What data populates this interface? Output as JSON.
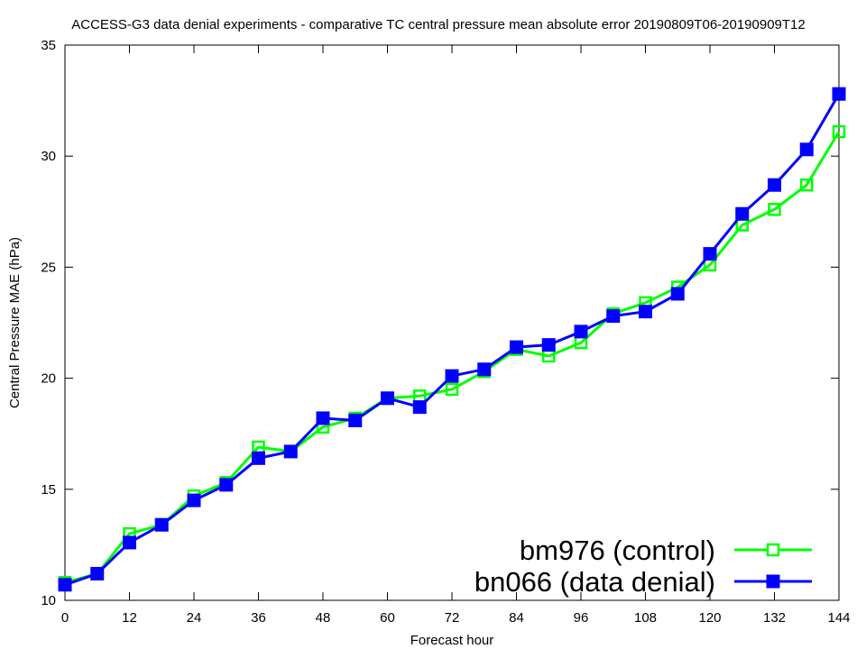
{
  "chart_data": {
    "type": "line",
    "title": "ACCESS-G3 data denial experiments - comparative TC central pressure mean absolute error 20190809T06-20190909T12",
    "xlabel": "Forecast hour",
    "ylabel": "Central Pressure MAE (hPa)",
    "xlim": [
      0,
      144
    ],
    "ylim": [
      10,
      35
    ],
    "xticks": [
      0,
      12,
      24,
      36,
      48,
      60,
      72,
      84,
      96,
      108,
      120,
      132,
      144
    ],
    "yticks": [
      10,
      15,
      20,
      25,
      30,
      35
    ],
    "grid": false,
    "legend_position": "bottom-right",
    "x": [
      0,
      6,
      12,
      18,
      24,
      30,
      36,
      42,
      48,
      54,
      60,
      66,
      72,
      78,
      84,
      90,
      96,
      102,
      108,
      114,
      120,
      126,
      132,
      138,
      144
    ],
    "series": [
      {
        "name": "bm976 (control)",
        "color": "#00ff00",
        "marker": "open-square",
        "values": [
          10.8,
          11.2,
          13.0,
          13.4,
          14.7,
          15.3,
          16.9,
          16.7,
          17.8,
          18.2,
          19.1,
          19.2,
          19.5,
          20.3,
          21.3,
          21.0,
          21.6,
          22.9,
          23.4,
          24.1,
          25.1,
          26.9,
          27.6,
          28.7,
          31.1
        ]
      },
      {
        "name": "bn066 (data denial)",
        "color": "#0000ff",
        "marker": "filled-square",
        "values": [
          10.7,
          11.2,
          12.6,
          13.4,
          14.5,
          15.2,
          16.4,
          16.7,
          18.2,
          18.1,
          19.1,
          18.7,
          20.1,
          20.4,
          21.4,
          21.5,
          22.1,
          22.8,
          23.0,
          23.8,
          25.6,
          27.4,
          28.7,
          30.3,
          32.8
        ]
      }
    ]
  }
}
